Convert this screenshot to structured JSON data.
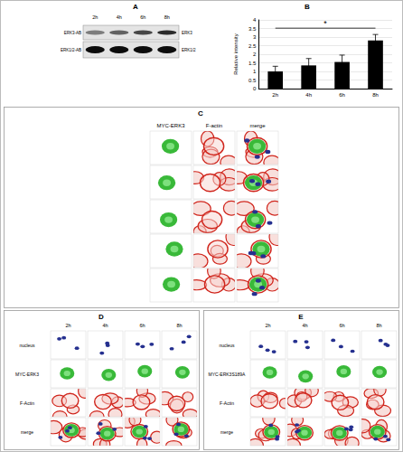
{
  "chart_data": {
    "type": "bar",
    "categories": [
      "2h",
      "4h",
      "6h",
      "8h"
    ],
    "values": [
      1.0,
      1.35,
      1.55,
      2.8
    ],
    "errors": [
      0.3,
      0.4,
      0.4,
      0.35
    ],
    "color": "#000000",
    "y_label": "Relative intensity",
    "ylim": [
      0,
      4
    ],
    "yticks": [
      0,
      0.5,
      1,
      1.5,
      2,
      2.5,
      3,
      3.5,
      4
    ],
    "grid": true,
    "annotations": [
      {
        "text": "*",
        "from": "2h",
        "to": "8h"
      }
    ]
  },
  "panels": {
    "A": {
      "label": "A",
      "lanes": [
        "2h",
        "4h",
        "6h",
        "8h"
      ],
      "rows": [
        {
          "left": "ERK3-AB",
          "right": "ERK3"
        },
        {
          "left": "ERK1/2-AB",
          "right": "ERK1/2"
        }
      ]
    },
    "B": {
      "label": "B"
    },
    "C": {
      "label": "C",
      "columns": [
        "MYC-ERK3",
        "F-actin",
        "merge"
      ]
    },
    "D": {
      "label": "D",
      "columns": [
        "2h",
        "4h",
        "6h",
        "8h"
      ],
      "rows": [
        "nucleus",
        "MYC-ERK3",
        "F-Actin",
        "merge"
      ]
    },
    "E": {
      "label": "E",
      "columns": [
        "2h",
        "4h",
        "6h",
        "8h"
      ],
      "rows": [
        "nucleus",
        "MYC-ERK3S189A",
        "F-Actin",
        "merge"
      ]
    }
  }
}
